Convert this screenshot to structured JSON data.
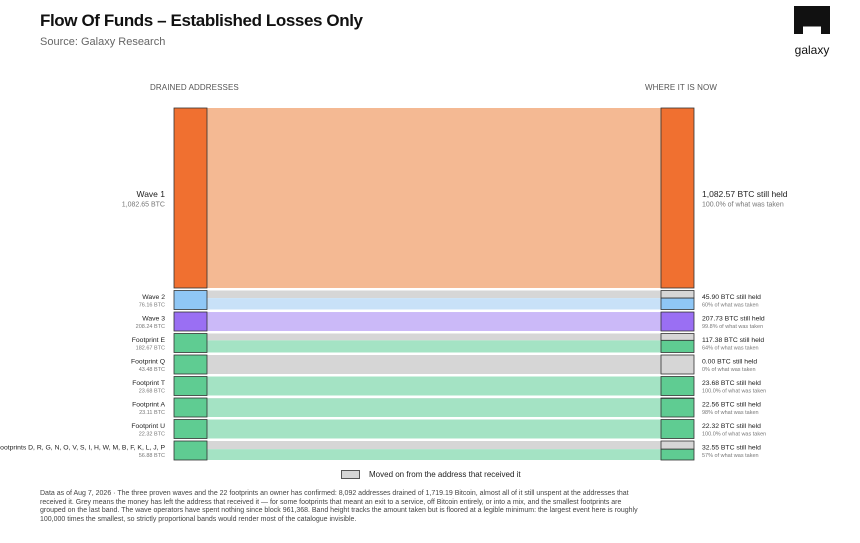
{
  "header": {
    "title": "Flow Of Funds – Established Losses Only",
    "subtitle": "Source: Galaxy Research",
    "logo_text": "galaxy"
  },
  "columns": {
    "left": "DRAINED ADDRESSES",
    "right": "WHERE IT IS NOW"
  },
  "legend": {
    "moved_label": "Moved on from the address that received it"
  },
  "colors": {
    "moved": "#d6d6d6",
    "outline": "#333333"
  },
  "chart_data": {
    "type": "sankey",
    "unit": "BTC",
    "nodes": [
      {
        "name": "Wave 1",
        "amount": "1,082.65 BTC",
        "value": 1082.65,
        "held": 1082.57,
        "held_label": "1,082.57 BTC still held",
        "pct_label": "100.0% of what was taken",
        "held_fraction": 1.0,
        "color": "#f07030",
        "flow_color": "#f4b993"
      },
      {
        "name": "Wave 2",
        "amount": "76.16 BTC",
        "value": 76.16,
        "held": 45.9,
        "held_label": "45.90 BTC still held",
        "pct_label": "60% of what was taken",
        "held_fraction": 0.6,
        "color": "#8fc7f6",
        "flow_color": "#c8e1f8"
      },
      {
        "name": "Wave 3",
        "amount": "208.24 BTC",
        "value": 208.24,
        "held": 207.73,
        "held_label": "207.73 BTC still held",
        "pct_label": "99.8% of what was taken",
        "held_fraction": 0.998,
        "color": "#9a6ff3",
        "flow_color": "#cbb9f8"
      },
      {
        "name": "Footprint E",
        "amount": "182.67 BTC",
        "value": 182.67,
        "held": 117.38,
        "held_label": "117.38 BTC still held",
        "pct_label": "64% of what was taken",
        "held_fraction": 0.64,
        "color": "#5fcc92",
        "flow_color": "#a4e3c4"
      },
      {
        "name": "Footprint Q",
        "amount": "43.48 BTC",
        "value": 43.48,
        "held": 0.0,
        "held_label": "0.00 BTC still held",
        "pct_label": "0% of what was taken",
        "held_fraction": 0.0,
        "color": "#5fcc92",
        "flow_color": "#a4e3c4"
      },
      {
        "name": "Footprint T",
        "amount": "23.68 BTC",
        "value": 23.68,
        "held": 23.68,
        "held_label": "23.68 BTC still held",
        "pct_label": "100.0% of what was taken",
        "held_fraction": 1.0,
        "color": "#5fcc92",
        "flow_color": "#a4e3c4"
      },
      {
        "name": "Footprint A",
        "amount": "23.11 BTC",
        "value": 23.11,
        "held": 22.56,
        "held_label": "22.56 BTC still held",
        "pct_label": "98% of what was taken",
        "held_fraction": 0.98,
        "color": "#5fcc92",
        "flow_color": "#a4e3c4"
      },
      {
        "name": "Footprint U",
        "amount": "22.32 BTC",
        "value": 22.32,
        "held": 22.32,
        "held_label": "22.32 BTC still held",
        "pct_label": "100.0% of what was taken",
        "held_fraction": 1.0,
        "color": "#5fcc92",
        "flow_color": "#a4e3c4"
      },
      {
        "name": "Footprints D, R, G, N, O, V, S, I, H, W, M, B, F, K, L, J, P",
        "amount": "56.88 BTC",
        "value": 56.88,
        "held": 32.55,
        "held_label": "32.55 BTC still held",
        "pct_label": "57% of what was taken",
        "held_fraction": 0.57,
        "color": "#5fcc92",
        "flow_color": "#a4e3c4"
      }
    ]
  },
  "footnote": "Data as of Aug 7, 2026 · The three proven waves and the 22 footprints an owner has confirmed: 8,092 addresses drained of 1,719.19 Bitcoin, almost all of it still unspent at the addresses that received it. Grey means the money has left the address that received it — for some footprints that meant an exit to a service, off Bitcoin entirely, or into a mix, and the smallest footprints are grouped on the last band. The wave operators have spent nothing since block 961,368. Band height tracks the amount taken but is floored at a legible minimum: the largest event here is roughly 100,000 times the smallest, so strictly proportional bands would render most of the catalogue invisible."
}
